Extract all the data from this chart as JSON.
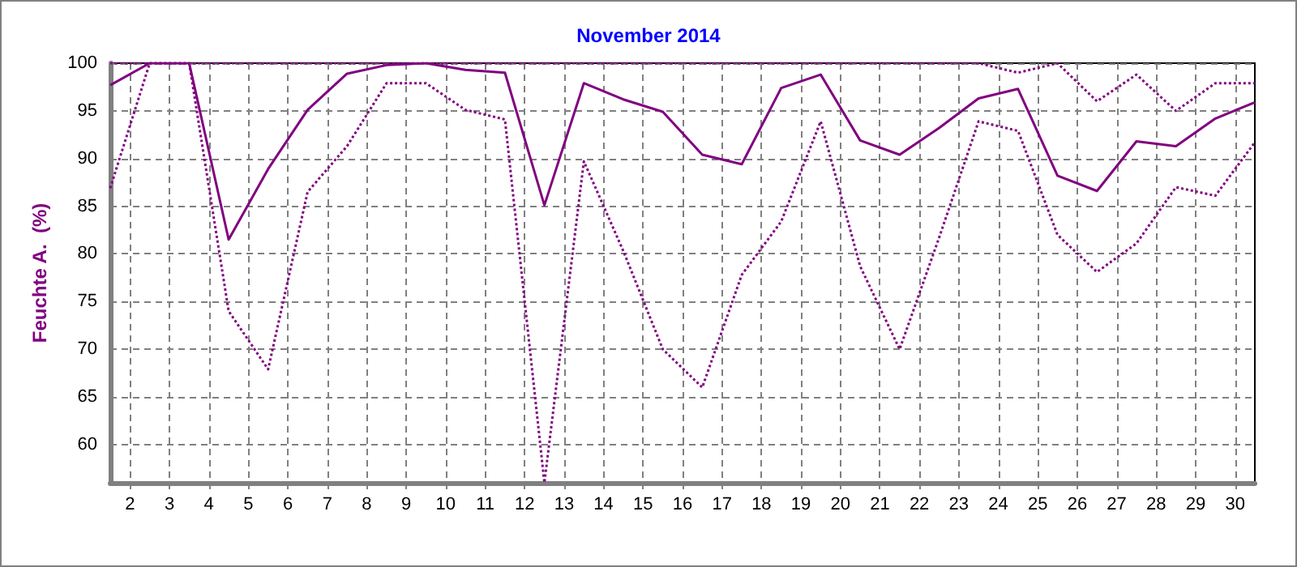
{
  "chart_data": {
    "type": "line",
    "title": "November 2014",
    "ylabel": "Feuchte A.  (%)",
    "x": [
      1.5,
      2.5,
      3.5,
      4.5,
      5.5,
      6.5,
      7.5,
      8.5,
      9.5,
      10.5,
      11.5,
      12.5,
      13.5,
      14.5,
      15.5,
      16.5,
      17.5,
      18.5,
      19.5,
      20.5,
      21.5,
      22.5,
      23.5,
      24.5,
      25.5,
      26.5,
      27.5,
      28.5,
      29.5,
      30.5
    ],
    "series": [
      {
        "color": "#800080",
        "line_style": "dotted",
        "values": [
          100,
          100,
          100,
          100,
          100,
          100,
          100,
          100,
          100,
          100,
          100,
          100,
          100,
          100,
          100,
          100,
          100,
          100,
          100,
          100,
          100,
          100,
          100,
          99,
          100,
          96,
          98.8,
          95,
          97.9,
          97.9
        ]
      },
      {
        "color": "#800080",
        "line_style": "solid",
        "values": [
          97.7,
          100,
          100,
          81.5,
          88.9,
          95.1,
          98.9,
          99.8,
          100,
          99.3,
          99,
          85.1,
          97.9,
          96.2,
          94.9,
          90.4,
          89.4,
          97.4,
          98.8,
          91.9,
          90.4,
          93.2,
          96.3,
          97.3,
          88.2,
          86.6,
          91.8,
          91.3,
          94.2,
          95.9
        ]
      },
      {
        "color": "#800080",
        "line_style": "dotted",
        "values": [
          86.9,
          100,
          100,
          74,
          67.9,
          86.5,
          91.3,
          97.9,
          97.9,
          95.1,
          94.1,
          56,
          89.7,
          80.3,
          70,
          66,
          77.8,
          83.4,
          93.9,
          78.7,
          70,
          81.7,
          93.9,
          92.9,
          82,
          78.1,
          81.1,
          87,
          86.1,
          91.7
        ]
      }
    ],
    "xlim": [
      1.5,
      30.5
    ],
    "xticks": [
      2,
      3,
      4,
      5,
      6,
      7,
      8,
      9,
      10,
      11,
      12,
      13,
      14,
      15,
      16,
      17,
      18,
      19,
      20,
      21,
      22,
      23,
      24,
      25,
      26,
      27,
      28,
      29,
      30
    ],
    "ylim": [
      56,
      100
    ],
    "yticks": [
      60,
      65,
      70,
      75,
      80,
      85,
      90,
      95,
      100
    ],
    "grid": true,
    "marker": "none"
  }
}
